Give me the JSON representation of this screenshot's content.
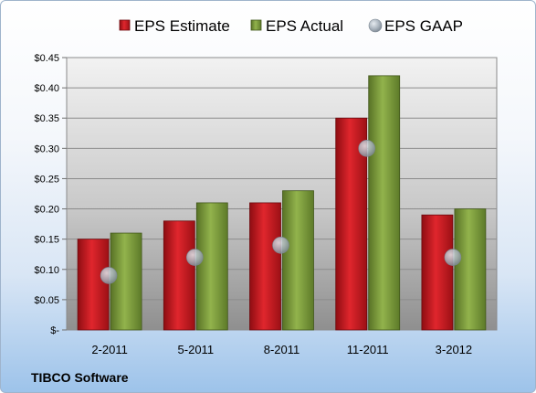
{
  "chart_data": {
    "type": "bar",
    "categories": [
      "2-2011",
      "5-2011",
      "8-2011",
      "11-2011",
      "3-2012"
    ],
    "series": [
      {
        "name": "EPS Estimate",
        "kind": "bar",
        "color": "#c8161d",
        "values": [
          0.15,
          0.18,
          0.21,
          0.35,
          0.19
        ]
      },
      {
        "name": "EPS Actual",
        "kind": "bar",
        "color": "#7fa03e",
        "values": [
          0.16,
          0.21,
          0.23,
          0.42,
          0.2
        ]
      },
      {
        "name": "EPS GAAP",
        "kind": "marker",
        "color": "#b9c4cf",
        "values": [
          0.09,
          0.12,
          0.14,
          0.3,
          0.12
        ]
      }
    ],
    "ylim": [
      0,
      0.45
    ],
    "yticks": [
      0,
      0.05,
      0.1,
      0.15,
      0.2,
      0.25,
      0.3,
      0.35,
      0.4,
      0.45
    ],
    "ytick_labels": [
      "$-",
      "$0.05",
      "$0.10",
      "$0.15",
      "$0.20",
      "$0.25",
      "$0.30",
      "$0.35",
      "$0.40",
      "$0.45"
    ],
    "grid": true,
    "legend_position": "top"
  },
  "footer": {
    "company": "TIBCO Software"
  }
}
